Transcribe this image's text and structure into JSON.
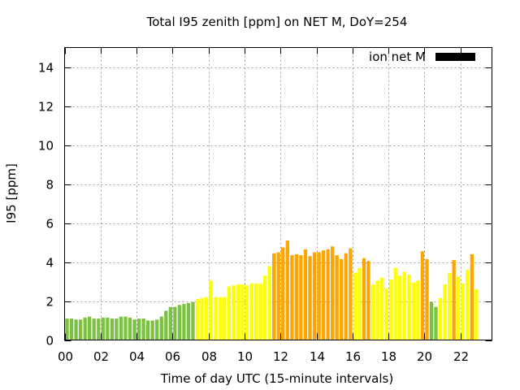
{
  "chart_data": {
    "type": "bar",
    "title": "Total I95 zenith [ppm] on NET M, DoY=254",
    "xlabel": "Time of day UTC (15-minute intervals)",
    "ylabel": "I95 [ppm]",
    "xlim": [
      0,
      23.75
    ],
    "ylim": [
      0,
      15
    ],
    "x_ticks": [
      "00",
      "02",
      "04",
      "06",
      "08",
      "10",
      "12",
      "14",
      "16",
      "18",
      "20",
      "22"
    ],
    "y_ticks": [
      "0",
      "2",
      "4",
      "6",
      "8",
      "10",
      "12",
      "14"
    ],
    "grid": true,
    "legend": {
      "position": "top-right",
      "label": "ion net M",
      "color": "#000000"
    },
    "level_colors": {
      "green": "#7cc242",
      "yellow": "#ffff00",
      "orange": "#ffa500"
    },
    "series": [
      {
        "name": "ion net M",
        "interval_hours": 0.25,
        "values": [
          1.1,
          1.1,
          1.05,
          1.05,
          1.15,
          1.2,
          1.1,
          1.1,
          1.15,
          1.15,
          1.1,
          1.1,
          1.2,
          1.2,
          1.15,
          1.05,
          1.1,
          1.1,
          1.0,
          1.0,
          1.05,
          1.2,
          1.5,
          1.7,
          1.7,
          1.8,
          1.85,
          1.9,
          1.95,
          2.1,
          2.15,
          2.2,
          3.05,
          2.2,
          2.2,
          2.2,
          2.75,
          2.8,
          2.85,
          2.85,
          2.8,
          2.9,
          2.9,
          2.9,
          3.3,
          3.8,
          4.45,
          4.5,
          4.75,
          5.1,
          4.35,
          4.4,
          4.35,
          4.65,
          4.3,
          4.5,
          4.5,
          4.6,
          4.65,
          4.8,
          4.35,
          4.15,
          4.45,
          4.7,
          3.45,
          3.7,
          4.2,
          4.05,
          2.85,
          3.05,
          3.2,
          2.65,
          3.1,
          3.7,
          3.3,
          3.5,
          3.35,
          2.95,
          3.05,
          4.55,
          4.15,
          1.95,
          1.7,
          2.15,
          2.85,
          3.45,
          4.1,
          3.25,
          2.9,
          3.6,
          4.4,
          2.6
        ],
        "levels": [
          "green",
          "green",
          "green",
          "green",
          "green",
          "green",
          "green",
          "green",
          "green",
          "green",
          "green",
          "green",
          "green",
          "green",
          "green",
          "green",
          "green",
          "green",
          "green",
          "green",
          "green",
          "green",
          "green",
          "green",
          "green",
          "green",
          "green",
          "green",
          "green",
          "yellow",
          "yellow",
          "yellow",
          "yellow",
          "yellow",
          "yellow",
          "yellow",
          "yellow",
          "yellow",
          "yellow",
          "yellow",
          "yellow",
          "yellow",
          "yellow",
          "yellow",
          "yellow",
          "yellow",
          "orange",
          "orange",
          "orange",
          "orange",
          "orange",
          "orange",
          "orange",
          "orange",
          "orange",
          "orange",
          "orange",
          "orange",
          "orange",
          "orange",
          "orange",
          "orange",
          "orange",
          "orange",
          "yellow",
          "yellow",
          "orange",
          "orange",
          "yellow",
          "yellow",
          "yellow",
          "yellow",
          "yellow",
          "yellow",
          "yellow",
          "yellow",
          "yellow",
          "yellow",
          "yellow",
          "orange",
          "orange",
          "green",
          "green",
          "yellow",
          "yellow",
          "yellow",
          "orange",
          "yellow",
          "yellow",
          "yellow",
          "orange",
          "yellow"
        ]
      }
    ]
  }
}
